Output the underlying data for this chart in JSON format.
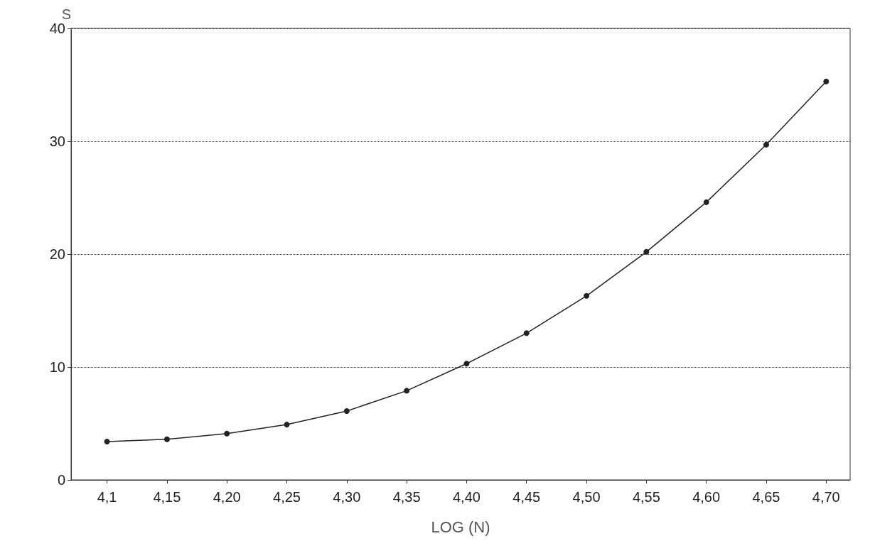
{
  "chart_data": {
    "type": "line",
    "xlabel": "LOG (N)",
    "ylabel": "S",
    "x": [
      4.1,
      4.15,
      4.2,
      4.25,
      4.3,
      4.35,
      4.4,
      4.45,
      4.5,
      4.55,
      4.6,
      4.65,
      4.7
    ],
    "series": [
      {
        "color": "#222222",
        "values": [
          3.4,
          3.6,
          4.1,
          4.9,
          6.1,
          7.9,
          10.3,
          13,
          16.3,
          20.2,
          24.6,
          29.7,
          35.3
        ]
      }
    ],
    "xlim": [
      4.07,
      4.72
    ],
    "xticks": [
      {
        "value": 4.1,
        "label": "4,1"
      },
      {
        "value": 4.15,
        "label": "4,15"
      },
      {
        "value": 4.2,
        "label": "4,20"
      },
      {
        "value": 4.25,
        "label": "4,25"
      },
      {
        "value": 4.3,
        "label": "4,30"
      },
      {
        "value": 4.35,
        "label": "4,35"
      },
      {
        "value": 4.4,
        "label": "4,40"
      },
      {
        "value": 4.45,
        "label": "4,45"
      },
      {
        "value": 4.5,
        "label": "4,50"
      },
      {
        "value": 4.55,
        "label": "4,55"
      },
      {
        "value": 4.6,
        "label": "4,60"
      },
      {
        "value": 4.65,
        "label": "4,65"
      },
      {
        "value": 4.7,
        "label": "4,70"
      }
    ],
    "ylim": [
      0,
      40
    ],
    "yticks": [
      0,
      10,
      20,
      30,
      40
    ],
    "grid": "y",
    "marker": "circle",
    "line_style": "solid"
  }
}
